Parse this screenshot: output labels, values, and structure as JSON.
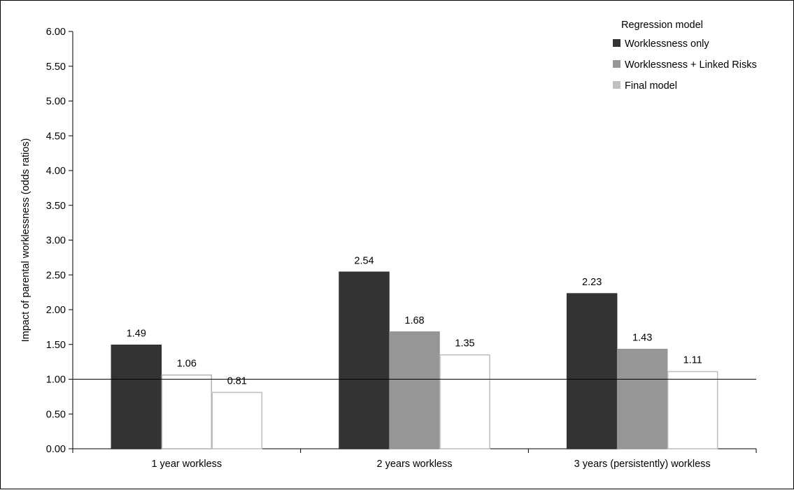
{
  "chart_data": {
    "type": "bar",
    "title": "",
    "xlabel": "",
    "ylabel": "Impact of parental worklessness (odds ratios)",
    "ylim": [
      0,
      6
    ],
    "y_ticks": [
      "0.00",
      "0.50",
      "1.00",
      "1.50",
      "2.00",
      "2.50",
      "3.00",
      "3.50",
      "4.00",
      "4.50",
      "5.00",
      "5.50",
      "6.00"
    ],
    "reference_line": 1.0,
    "grid": false,
    "legend_title": "Regression model",
    "legend_position": "top-right",
    "categories": [
      "1 year workless",
      "2 years workless",
      "3 years (persistently) workless"
    ],
    "series": [
      {
        "name": "Worklessness only",
        "values": [
          1.49,
          2.54,
          2.23
        ],
        "labels": [
          "1.49",
          "2.54",
          "2.23"
        ],
        "fill": "#333333",
        "stroke": "#333333"
      },
      {
        "name": "Worklessness + Linked Risks",
        "values": [
          1.06,
          1.68,
          1.43
        ],
        "labels": [
          "1.06",
          "1.68",
          "1.43"
        ],
        "fill": [
          "#ffffff",
          "#969696",
          "#969696"
        ],
        "stroke": [
          "#b0b0b0",
          "#969696",
          "#969696"
        ]
      },
      {
        "name": "Final model",
        "values": [
          0.81,
          1.35,
          1.11
        ],
        "labels": [
          "0.81",
          "1.35",
          "1.11"
        ],
        "fill": "#ffffff",
        "stroke": "#bdbdbd",
        "legend_swatch": "#c0c0c0"
      }
    ]
  }
}
